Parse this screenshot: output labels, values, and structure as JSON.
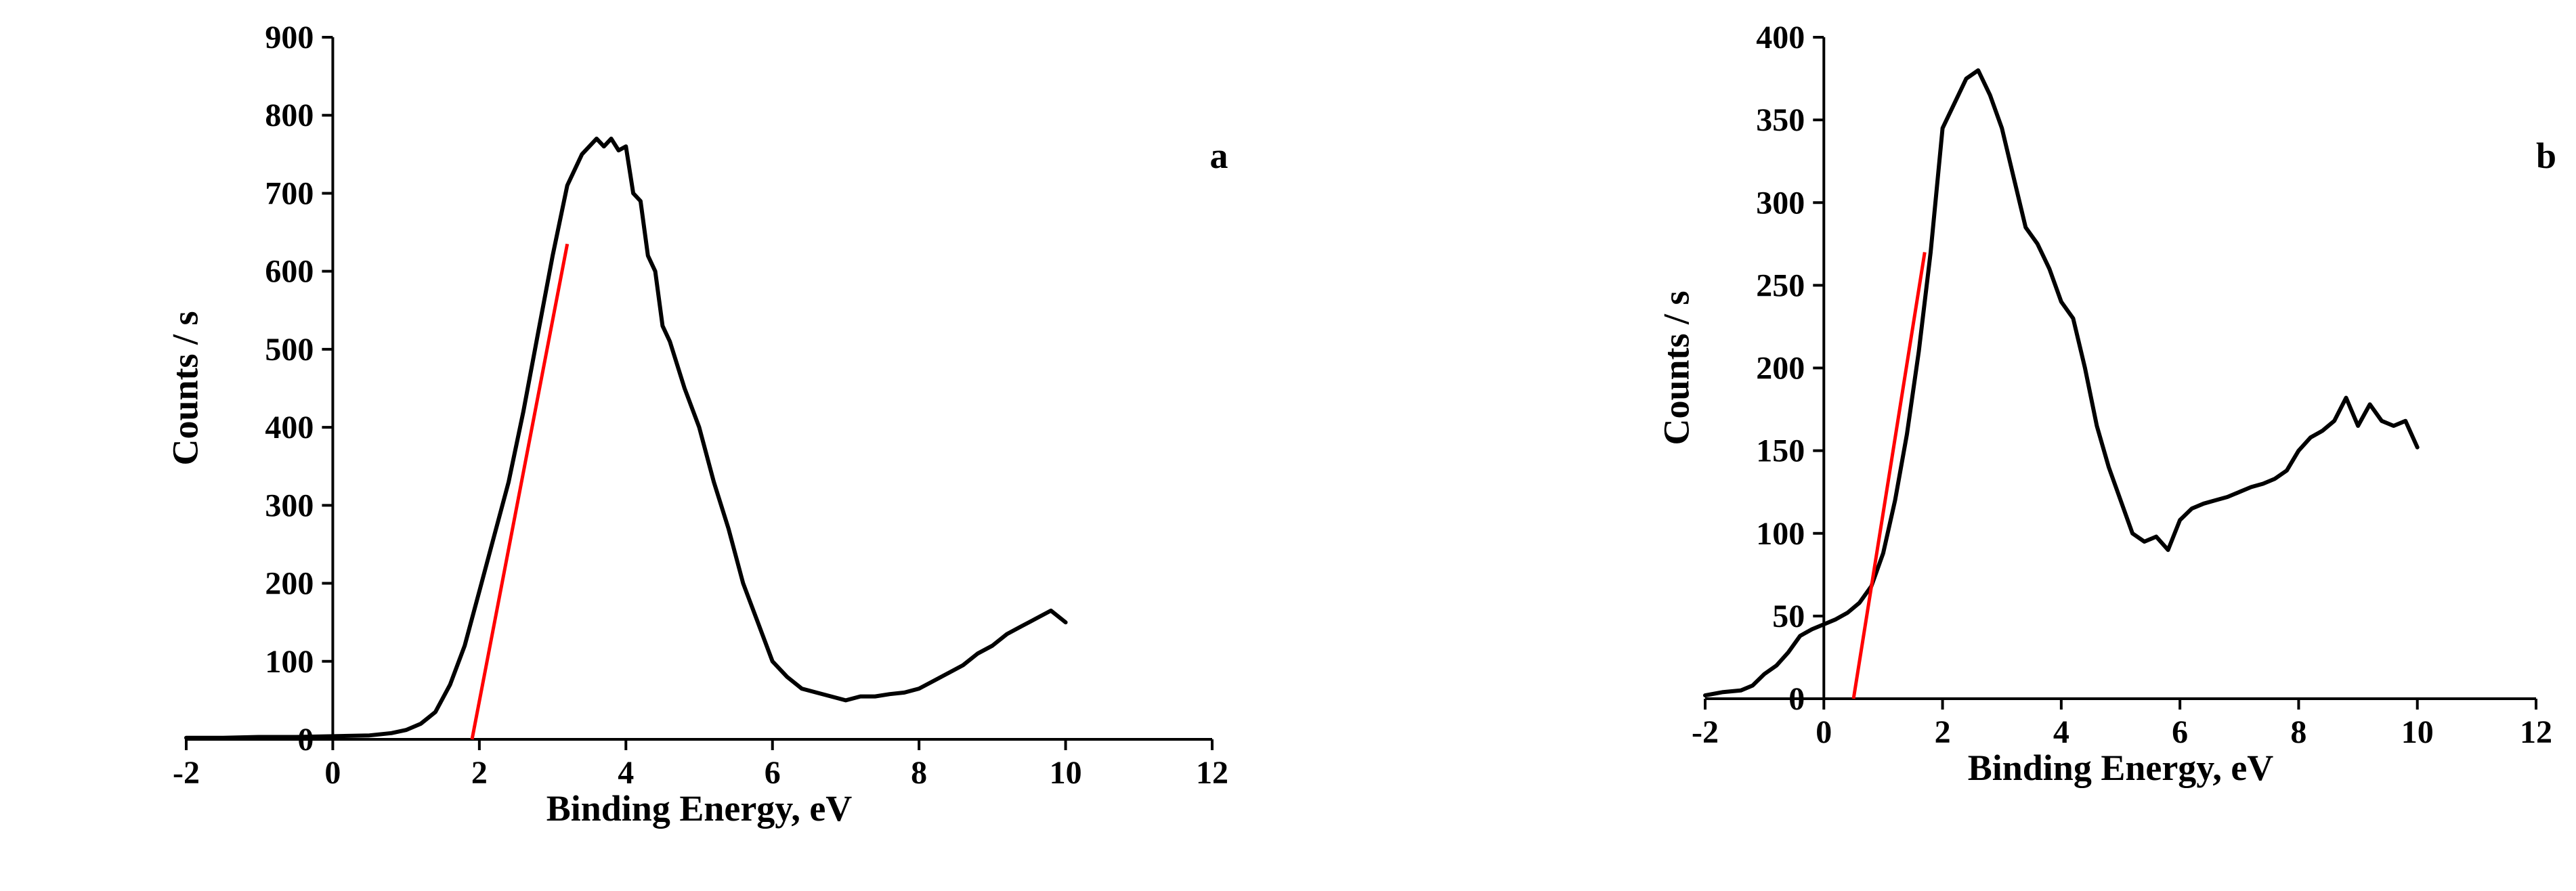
{
  "chart_data": [
    {
      "type": "line",
      "panel_label": "a",
      "title": "",
      "xlabel": "Binding Energy, eV",
      "ylabel": "Counts / s",
      "xlim": [
        -2,
        12
      ],
      "ylim": [
        0,
        900
      ],
      "xticks": [
        -2,
        0,
        2,
        4,
        6,
        8,
        10,
        12
      ],
      "yticks": [
        0,
        100,
        200,
        300,
        400,
        500,
        600,
        700,
        800,
        900
      ],
      "grid": false,
      "legend": "none",
      "colors": {
        "spectrum": "#000000",
        "fit_line": "#ff0000"
      },
      "series": [
        {
          "x": [
            -2,
            -1.5,
            -1,
            -0.5,
            0,
            0.5,
            0.8,
            1.0,
            1.2,
            1.4,
            1.6,
            1.8,
            2.0,
            2.2,
            2.4,
            2.6,
            2.8,
            3.0,
            3.2,
            3.4,
            3.6,
            3.7,
            3.8,
            3.9,
            4.0,
            4.1,
            4.2,
            4.3,
            4.4,
            4.5,
            4.6,
            4.8,
            5.0,
            5.2,
            5.4,
            5.6,
            5.8,
            6.0,
            6.2,
            6.4,
            6.6,
            6.8,
            7.0,
            7.2,
            7.4,
            7.6,
            7.8,
            8.0,
            8.2,
            8.4,
            8.6,
            8.8,
            9.0,
            9.2,
            9.4,
            9.6,
            9.8,
            10.0
          ],
          "y": [
            2,
            2,
            3,
            3,
            4,
            5,
            8,
            12,
            20,
            35,
            70,
            120,
            190,
            260,
            330,
            420,
            520,
            620,
            710,
            750,
            770,
            760,
            770,
            755,
            760,
            700,
            690,
            620,
            600,
            530,
            510,
            450,
            400,
            330,
            270,
            200,
            150,
            100,
            80,
            65,
            60,
            55,
            50,
            55,
            55,
            58,
            60,
            65,
            75,
            85,
            95,
            110,
            120,
            135,
            145,
            155,
            165,
            150
          ]
        }
      ],
      "fit_line": {
        "x": [
          1.9,
          3.2
        ],
        "y": [
          0,
          635
        ]
      }
    },
    {
      "type": "line",
      "panel_label": "b",
      "title": "",
      "xlabel": "Binding Energy, eV",
      "ylabel": "Counts / s",
      "xlim": [
        -2,
        12
      ],
      "ylim": [
        0,
        400
      ],
      "xticks": [
        -2,
        0,
        2,
        4,
        6,
        8,
        10,
        12
      ],
      "yticks": [
        0,
        50,
        100,
        150,
        200,
        250,
        300,
        350,
        400
      ],
      "grid": false,
      "legend": "none",
      "colors": {
        "spectrum": "#000000",
        "fit_line": "#ff0000"
      },
      "series": [
        {
          "x": [
            -2,
            -1.7,
            -1.4,
            -1.2,
            -1.0,
            -0.8,
            -0.6,
            -0.4,
            -0.2,
            0.0,
            0.2,
            0.4,
            0.6,
            0.8,
            1.0,
            1.2,
            1.4,
            1.6,
            1.8,
            2.0,
            2.2,
            2.4,
            2.6,
            2.8,
            3.0,
            3.2,
            3.4,
            3.6,
            3.8,
            4.0,
            4.2,
            4.4,
            4.6,
            4.8,
            5.0,
            5.2,
            5.4,
            5.6,
            5.8,
            6.0,
            6.2,
            6.4,
            6.6,
            6.8,
            7.0,
            7.2,
            7.4,
            7.6,
            7.8,
            8.0,
            8.2,
            8.4,
            8.6,
            8.8,
            9.0,
            9.2,
            9.4,
            9.6,
            9.8,
            10.0
          ],
          "y": [
            2,
            4,
            5,
            8,
            15,
            20,
            28,
            38,
            42,
            45,
            48,
            52,
            58,
            68,
            88,
            120,
            160,
            210,
            270,
            345,
            360,
            375,
            380,
            365,
            345,
            315,
            285,
            275,
            260,
            240,
            230,
            200,
            165,
            140,
            120,
            100,
            95,
            98,
            90,
            108,
            115,
            118,
            120,
            122,
            125,
            128,
            130,
            133,
            138,
            150,
            158,
            162,
            168,
            182,
            165,
            178,
            168,
            165,
            168,
            152
          ]
        }
      ],
      "fit_line": {
        "x": [
          0.5,
          1.7
        ],
        "y": [
          0,
          270
        ]
      }
    }
  ]
}
